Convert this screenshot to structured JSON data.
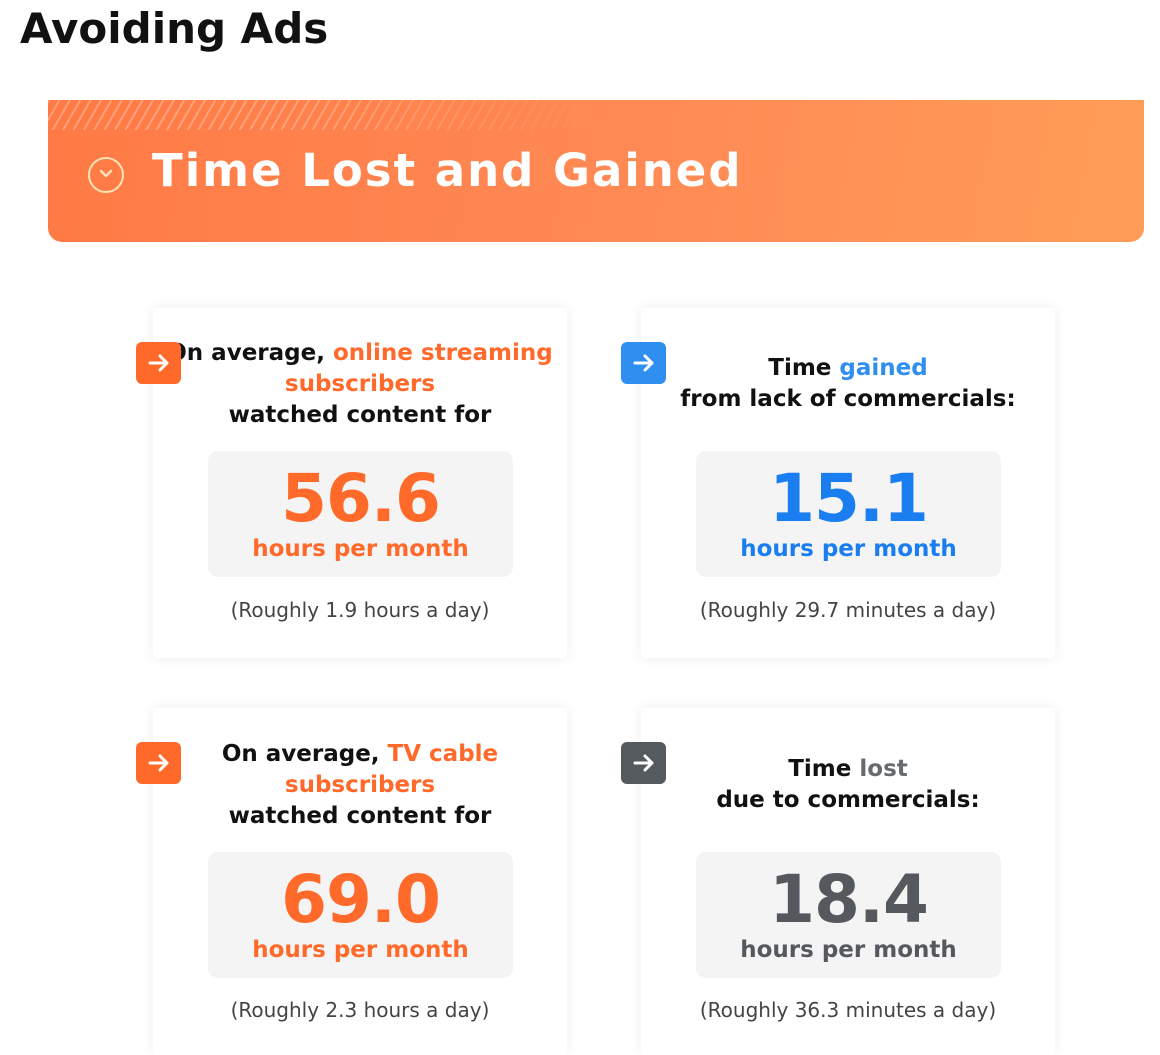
{
  "page": {
    "title": "Avoiding Ads"
  },
  "banner": {
    "title": "Time Lost and Gained",
    "icon": "chevron-down-circle-icon"
  },
  "colors": {
    "orange": "#ff6a2b",
    "blue": "#2f8ff0",
    "grey": "#55595d",
    "banner": "#ff8a55"
  },
  "cards": [
    {
      "arrow_icon": "arrow-right-icon",
      "heading": {
        "pre": "On average, ",
        "highlight": "online streaming subscribers",
        "post": " watched content for"
      },
      "value": "56.6",
      "unit": "hours per month",
      "note": "(Roughly 1.9 hours a day)"
    },
    {
      "arrow_icon": "arrow-right-icon",
      "heading": {
        "pre": "Time ",
        "highlight": "gained",
        "post": " from lack of commercials:"
      },
      "value": "15.1",
      "unit": "hours per month",
      "note": "(Roughly 29.7 minutes a day)"
    },
    {
      "arrow_icon": "arrow-right-icon",
      "heading": {
        "pre": "On average, ",
        "highlight": "TV cable subscribers",
        "post": " watched content for"
      },
      "value": "69.0",
      "unit": "hours per month",
      "note": "(Roughly 2.3 hours a day)"
    },
    {
      "arrow_icon": "arrow-right-icon",
      "heading": {
        "pre": "Time ",
        "highlight": "lost",
        "post": " due to commercials:"
      },
      "value": "18.4",
      "unit": "hours per month",
      "note": "(Roughly 36.3 minutes a day)"
    }
  ]
}
